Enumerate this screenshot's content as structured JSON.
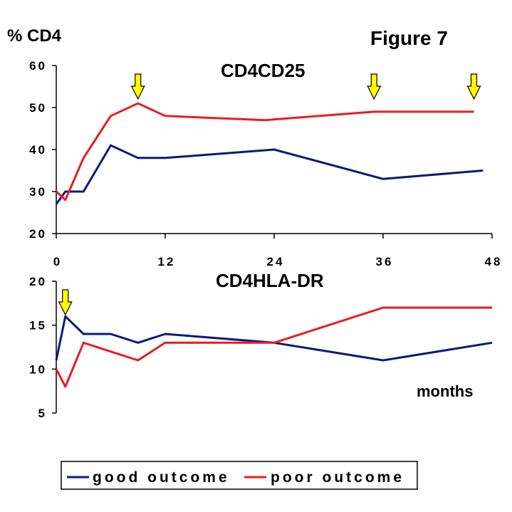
{
  "figure_label": "Figure 7",
  "y_label": "% CD4",
  "x_units": "months",
  "colors": {
    "good": "#0a1a7a",
    "poor": "#e81e1e",
    "arrow_fill": "#ffff00",
    "axis": "#000000"
  },
  "chart_data": [
    {
      "type": "line",
      "title": "CD4CD25",
      "ylabel": "% CD4",
      "xlabel": "months",
      "xlim": [
        0,
        48
      ],
      "ylim": [
        20,
        60
      ],
      "x_ticks": [
        0,
        12,
        24,
        36,
        48
      ],
      "y_ticks": [
        20,
        30,
        40,
        50,
        60
      ],
      "grid": false,
      "legend": "bottom",
      "series": [
        {
          "name": "good outcome",
          "x": [
            0,
            1,
            3,
            6,
            9,
            12,
            24,
            36,
            47
          ],
          "y": [
            27,
            30,
            30,
            41,
            38,
            38,
            40,
            33,
            35
          ]
        },
        {
          "name": "poor outcome",
          "x": [
            0,
            1,
            3,
            6,
            9,
            12,
            23,
            35,
            46
          ],
          "y": [
            30,
            28,
            38,
            48,
            51,
            48,
            47,
            49,
            49
          ]
        }
      ],
      "markers": [
        {
          "type": "arrow",
          "x": 9
        },
        {
          "type": "arrow",
          "x": 35
        },
        {
          "type": "arrow",
          "x": 46
        }
      ]
    },
    {
      "type": "line",
      "title": "CD4HLA-DR",
      "xlim": [
        0,
        48
      ],
      "ylim": [
        5,
        20
      ],
      "y_ticks": [
        5,
        10,
        15,
        20
      ],
      "grid": false,
      "series": [
        {
          "name": "good outcome",
          "x": [
            0,
            1,
            3,
            6,
            9,
            12,
            24,
            36,
            48
          ],
          "y": [
            11,
            16,
            14,
            14,
            13,
            14,
            13,
            11,
            13
          ]
        },
        {
          "name": "poor outcome",
          "x": [
            0,
            1,
            3,
            6,
            9,
            12,
            24,
            36,
            48
          ],
          "y": [
            10,
            8,
            13,
            12,
            11,
            13,
            13,
            17,
            17
          ]
        }
      ],
      "markers": [
        {
          "type": "arrow",
          "x": 1
        }
      ]
    }
  ],
  "legend": {
    "items": [
      {
        "label": "good outcome",
        "color": "#0a1a7a"
      },
      {
        "label": "poor outcome",
        "color": "#e81e1e"
      }
    ]
  }
}
